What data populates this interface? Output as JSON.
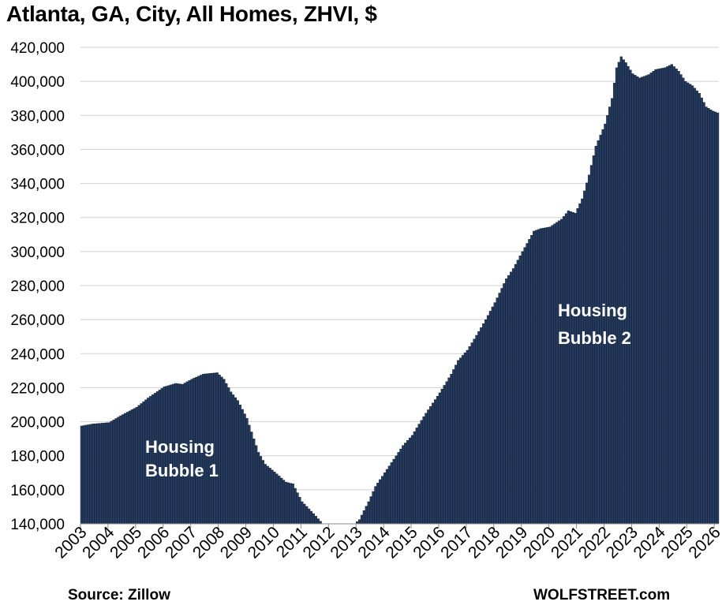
{
  "chart_data": {
    "type": "bar",
    "title": "Atlanta, GA, City, All Homes, ZHVI, $",
    "source": "Source: Zillow",
    "brand": "WOLFSTREET.com",
    "xlabel": "",
    "ylabel": "",
    "ylim": [
      140000,
      420000
    ],
    "ytick_labels": [
      "140,000",
      "160,000",
      "180,000",
      "200,000",
      "220,000",
      "240,000",
      "260,000",
      "280,000",
      "300,000",
      "320,000",
      "340,000",
      "360,000",
      "380,000",
      "400,000",
      "420,000"
    ],
    "xtick_labels": [
      "2003",
      "2004",
      "2005",
      "2006",
      "2007",
      "2008",
      "2009",
      "2010",
      "2011",
      "2012",
      "2013",
      "2014",
      "2015",
      "2016",
      "2017",
      "2018",
      "2019",
      "2020",
      "2021",
      "2022",
      "2023",
      "2024",
      "2025",
      "2026"
    ],
    "grid": true,
    "bar_color": "#243a5e",
    "annotations": [
      "Housing Bubble 1",
      "Housing Bubble 2"
    ],
    "frequency": "monthly",
    "start": "2003-01",
    "end": "2026-02",
    "anchors": [
      [
        "2003-01",
        197500
      ],
      [
        "2003-06",
        198700
      ],
      [
        "2004-01",
        199500
      ],
      [
        "2004-06",
        203500
      ],
      [
        "2005-01",
        208500
      ],
      [
        "2005-06",
        214000
      ],
      [
        "2006-01",
        220500
      ],
      [
        "2006-06",
        222500
      ],
      [
        "2006-09",
        222000
      ],
      [
        "2007-01",
        225000
      ],
      [
        "2007-06",
        228000
      ],
      [
        "2007-12",
        228800
      ],
      [
        "2008-03",
        225000
      ],
      [
        "2008-06",
        217500
      ],
      [
        "2008-09",
        212500
      ],
      [
        "2009-01",
        202000
      ],
      [
        "2009-06",
        182000
      ],
      [
        "2009-09",
        175000
      ],
      [
        "2010-01",
        170500
      ],
      [
        "2010-06",
        164500
      ],
      [
        "2010-09",
        163500
      ],
      [
        "2011-01",
        153000
      ],
      [
        "2011-06",
        146000
      ],
      [
        "2011-10",
        140000
      ],
      [
        "2012-12",
        140000
      ],
      [
        "2013-02",
        142500
      ],
      [
        "2013-06",
        153000
      ],
      [
        "2013-09",
        162000
      ],
      [
        "2014-01",
        170000
      ],
      [
        "2014-06",
        180000
      ],
      [
        "2014-09",
        186000
      ],
      [
        "2015-01",
        192000
      ],
      [
        "2015-06",
        203000
      ],
      [
        "2015-09",
        209000
      ],
      [
        "2016-01",
        217000
      ],
      [
        "2016-06",
        228000
      ],
      [
        "2016-09",
        236000
      ],
      [
        "2017-01",
        242000
      ],
      [
        "2017-06",
        253000
      ],
      [
        "2017-09",
        260000
      ],
      [
        "2018-01",
        270000
      ],
      [
        "2018-06",
        284000
      ],
      [
        "2018-09",
        290000
      ],
      [
        "2019-01",
        300000
      ],
      [
        "2019-06",
        312000
      ],
      [
        "2019-09",
        313500
      ],
      [
        "2020-01",
        314500
      ],
      [
        "2020-06",
        319000
      ],
      [
        "2020-09",
        324000
      ],
      [
        "2020-12",
        322500
      ],
      [
        "2021-03",
        331000
      ],
      [
        "2021-06",
        345000
      ],
      [
        "2021-09",
        362000
      ],
      [
        "2022-01",
        375000
      ],
      [
        "2022-04",
        390000
      ],
      [
        "2022-06",
        408000
      ],
      [
        "2022-08",
        414500
      ],
      [
        "2022-10",
        411000
      ],
      [
        "2023-01",
        404500
      ],
      [
        "2023-04",
        402000
      ],
      [
        "2023-08",
        404000
      ],
      [
        "2023-11",
        407000
      ],
      [
        "2024-03",
        408000
      ],
      [
        "2024-06",
        410000
      ],
      [
        "2024-09",
        406000
      ],
      [
        "2024-12",
        400000
      ],
      [
        "2025-03",
        397500
      ],
      [
        "2025-06",
        393000
      ],
      [
        "2025-09",
        385000
      ],
      [
        "2025-12",
        382500
      ],
      [
        "2026-02",
        381500
      ]
    ]
  }
}
